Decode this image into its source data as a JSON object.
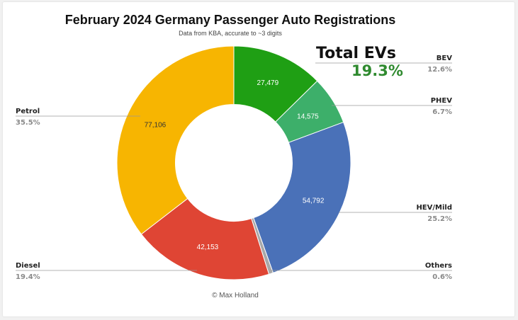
{
  "chart_data": {
    "type": "pie",
    "title": "February 2024 Germany Passenger Auto Registrations",
    "subtitle": "Data from KBA, accurate to ~3 digits",
    "categories": [
      "BEV",
      "PHEV",
      "HEV/Mild",
      "Others",
      "Diesel",
      "Petrol"
    ],
    "values": [
      27479,
      14575,
      54792,
      1300,
      42153,
      77106
    ],
    "value_labels": [
      "27,479",
      "14,575",
      "54,792",
      "",
      "42,153",
      "77,106"
    ],
    "percent_labels": [
      "12.6%",
      "6.7%",
      "25.2%",
      "0.6%",
      "19.4%",
      "35.5%"
    ],
    "colors": [
      "#1f9f14",
      "#3daf6a",
      "#4a71b8",
      "#a8a8a8",
      "#df4534",
      "#f7b501"
    ],
    "hole": 0.5,
    "legend": "side labels"
  },
  "annotation": {
    "label": "Total EVs",
    "value": "19.3%",
    "color": "#2f8a2f"
  },
  "footer": "© Max Holland"
}
